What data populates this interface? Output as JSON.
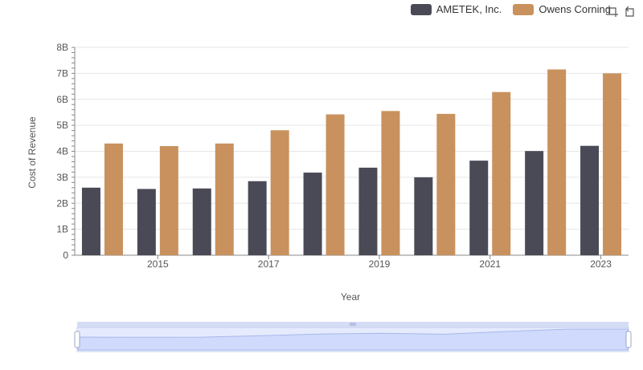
{
  "legend": {
    "items": [
      {
        "label": "AMETEK, Inc.",
        "color": "#4a4a57"
      },
      {
        "label": "Owens Corning",
        "color": "#c9915d"
      }
    ]
  },
  "toolbar": {
    "icons": [
      "zoom-icon",
      "reset-icon"
    ]
  },
  "chart_data": {
    "type": "bar",
    "title": "",
    "xlabel": "Year",
    "ylabel": "Cost of Revenue",
    "ylim": [
      0,
      8000000000
    ],
    "yticks": [
      "0",
      "1B",
      "2B",
      "3B",
      "4B",
      "5B",
      "6B",
      "7B",
      "8B"
    ],
    "xticks": [
      "2015",
      "2017",
      "2019",
      "2021",
      "2023"
    ],
    "categories": [
      "2014",
      "2015",
      "2016",
      "2017",
      "2018",
      "2019",
      "2020",
      "2021",
      "2022",
      "2023"
    ],
    "series": [
      {
        "name": "AMETEK, Inc.",
        "color": "#4a4a57",
        "values": [
          2600000000,
          2550000000,
          2570000000,
          2850000000,
          3180000000,
          3370000000,
          3000000000,
          3640000000,
          4010000000,
          4210000000
        ]
      },
      {
        "name": "Owens Corning",
        "color": "#c9915d",
        "values": [
          4300000000,
          4200000000,
          4300000000,
          4810000000,
          5420000000,
          5550000000,
          5440000000,
          6280000000,
          7150000000,
          7000000000
        ]
      }
    ],
    "grid": true,
    "legend_position": "top-right"
  }
}
